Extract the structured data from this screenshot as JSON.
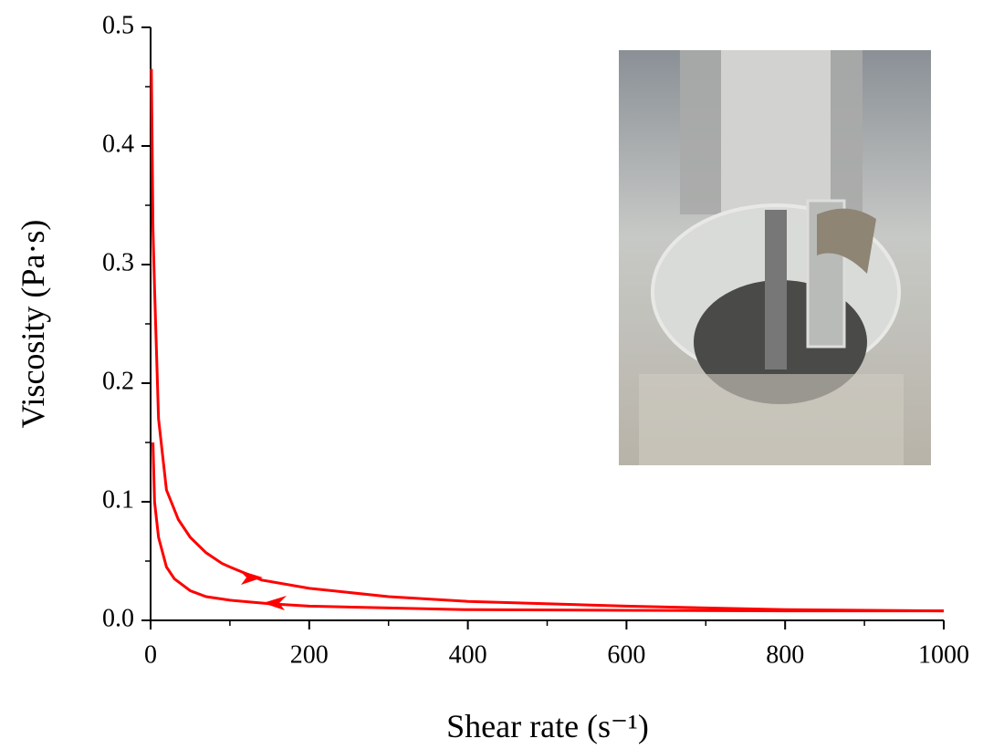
{
  "chart_data": {
    "type": "line",
    "xlabel": "Shear rate (s⁻¹)",
    "ylabel": "Viscosity (Pa·s)",
    "xlim": [
      0,
      1000
    ],
    "xticks": [
      0,
      200,
      400,
      600,
      800,
      1000
    ],
    "ylim": [
      0,
      0.5
    ],
    "yticks": [
      {
        "value": 0,
        "label": "0.0"
      },
      0.1,
      0.2,
      0.3,
      0.4,
      0.5
    ],
    "series": [
      {
        "color": "#ff0000",
        "x": [
          1,
          3,
          5,
          10,
          20,
          35,
          50,
          70,
          90,
          100,
          140,
          200,
          300,
          400,
          600,
          800,
          1000
        ],
        "values": [
          0.465,
          0.33,
          0.28,
          0.17,
          0.11,
          0.085,
          0.07,
          0.057,
          0.048,
          0.045,
          0.034,
          0.027,
          0.02,
          0.016,
          0.012,
          0.009,
          0.008
        ]
      },
      {
        "color": "#ff0000",
        "x": [
          1000,
          800,
          600,
          400,
          300,
          200,
          150,
          100,
          70,
          50,
          30,
          20,
          10,
          5,
          3
        ],
        "values": [
          0.008,
          0.008,
          0.0085,
          0.009,
          0.0105,
          0.012,
          0.014,
          0.017,
          0.02,
          0.025,
          0.035,
          0.045,
          0.07,
          0.1,
          0.15
        ]
      }
    ]
  }
}
